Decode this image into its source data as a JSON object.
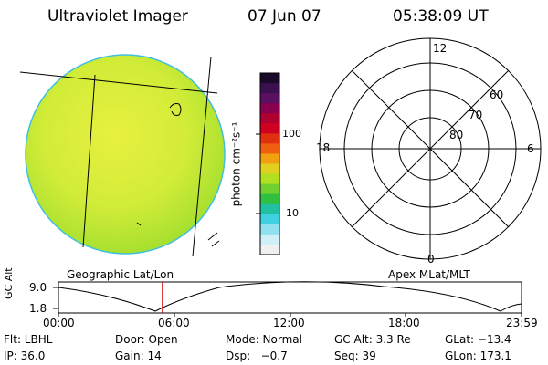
{
  "header": {
    "title": "Ultraviolet Imager",
    "date": "07 Jun 07",
    "time": "05:38:09 UT"
  },
  "colorbar": {
    "unit_label": "photon cm⁻²s⁻¹",
    "tick_100": "100",
    "tick_10": "10",
    "colors": [
      "#1a0a2a",
      "#3a1050",
      "#5a1060",
      "#8a0050",
      "#b00030",
      "#d00020",
      "#e03010",
      "#f06010",
      "#f0a010",
      "#e0d020",
      "#b0e020",
      "#70d030",
      "#30c040",
      "#20c0a0",
      "#40d0e0",
      "#90e0f0",
      "#d0f0f8",
      "#f0f0f0"
    ]
  },
  "left_panel": {
    "label": "Geographic Lat/Lon"
  },
  "right_panel": {
    "label": "Apex MLat/MLT",
    "mlt_labels": {
      "top": "12",
      "bottom": "0",
      "left": "18",
      "right": "6"
    },
    "lat_labels": [
      "60",
      "70",
      "80"
    ]
  },
  "timeline": {
    "y_axis_label": "GC Alt",
    "y_ticks": [
      "9.0",
      "1.8"
    ],
    "x_ticks": [
      "00:00",
      "06:00",
      "12:00",
      "18:00",
      "23:59"
    ],
    "marker_color": "#cc0000"
  },
  "footer": {
    "row1": [
      "Flt: LBHL",
      "Door: Open",
      "Mode: Normal",
      "GC Alt: 3.3 Re",
      "GLat: −13.4"
    ],
    "row2": [
      "IP: 36.0",
      "Gain: 14",
      "Dsp:   −0.7",
      "Seq: 39",
      "GLon: 173.1"
    ]
  }
}
